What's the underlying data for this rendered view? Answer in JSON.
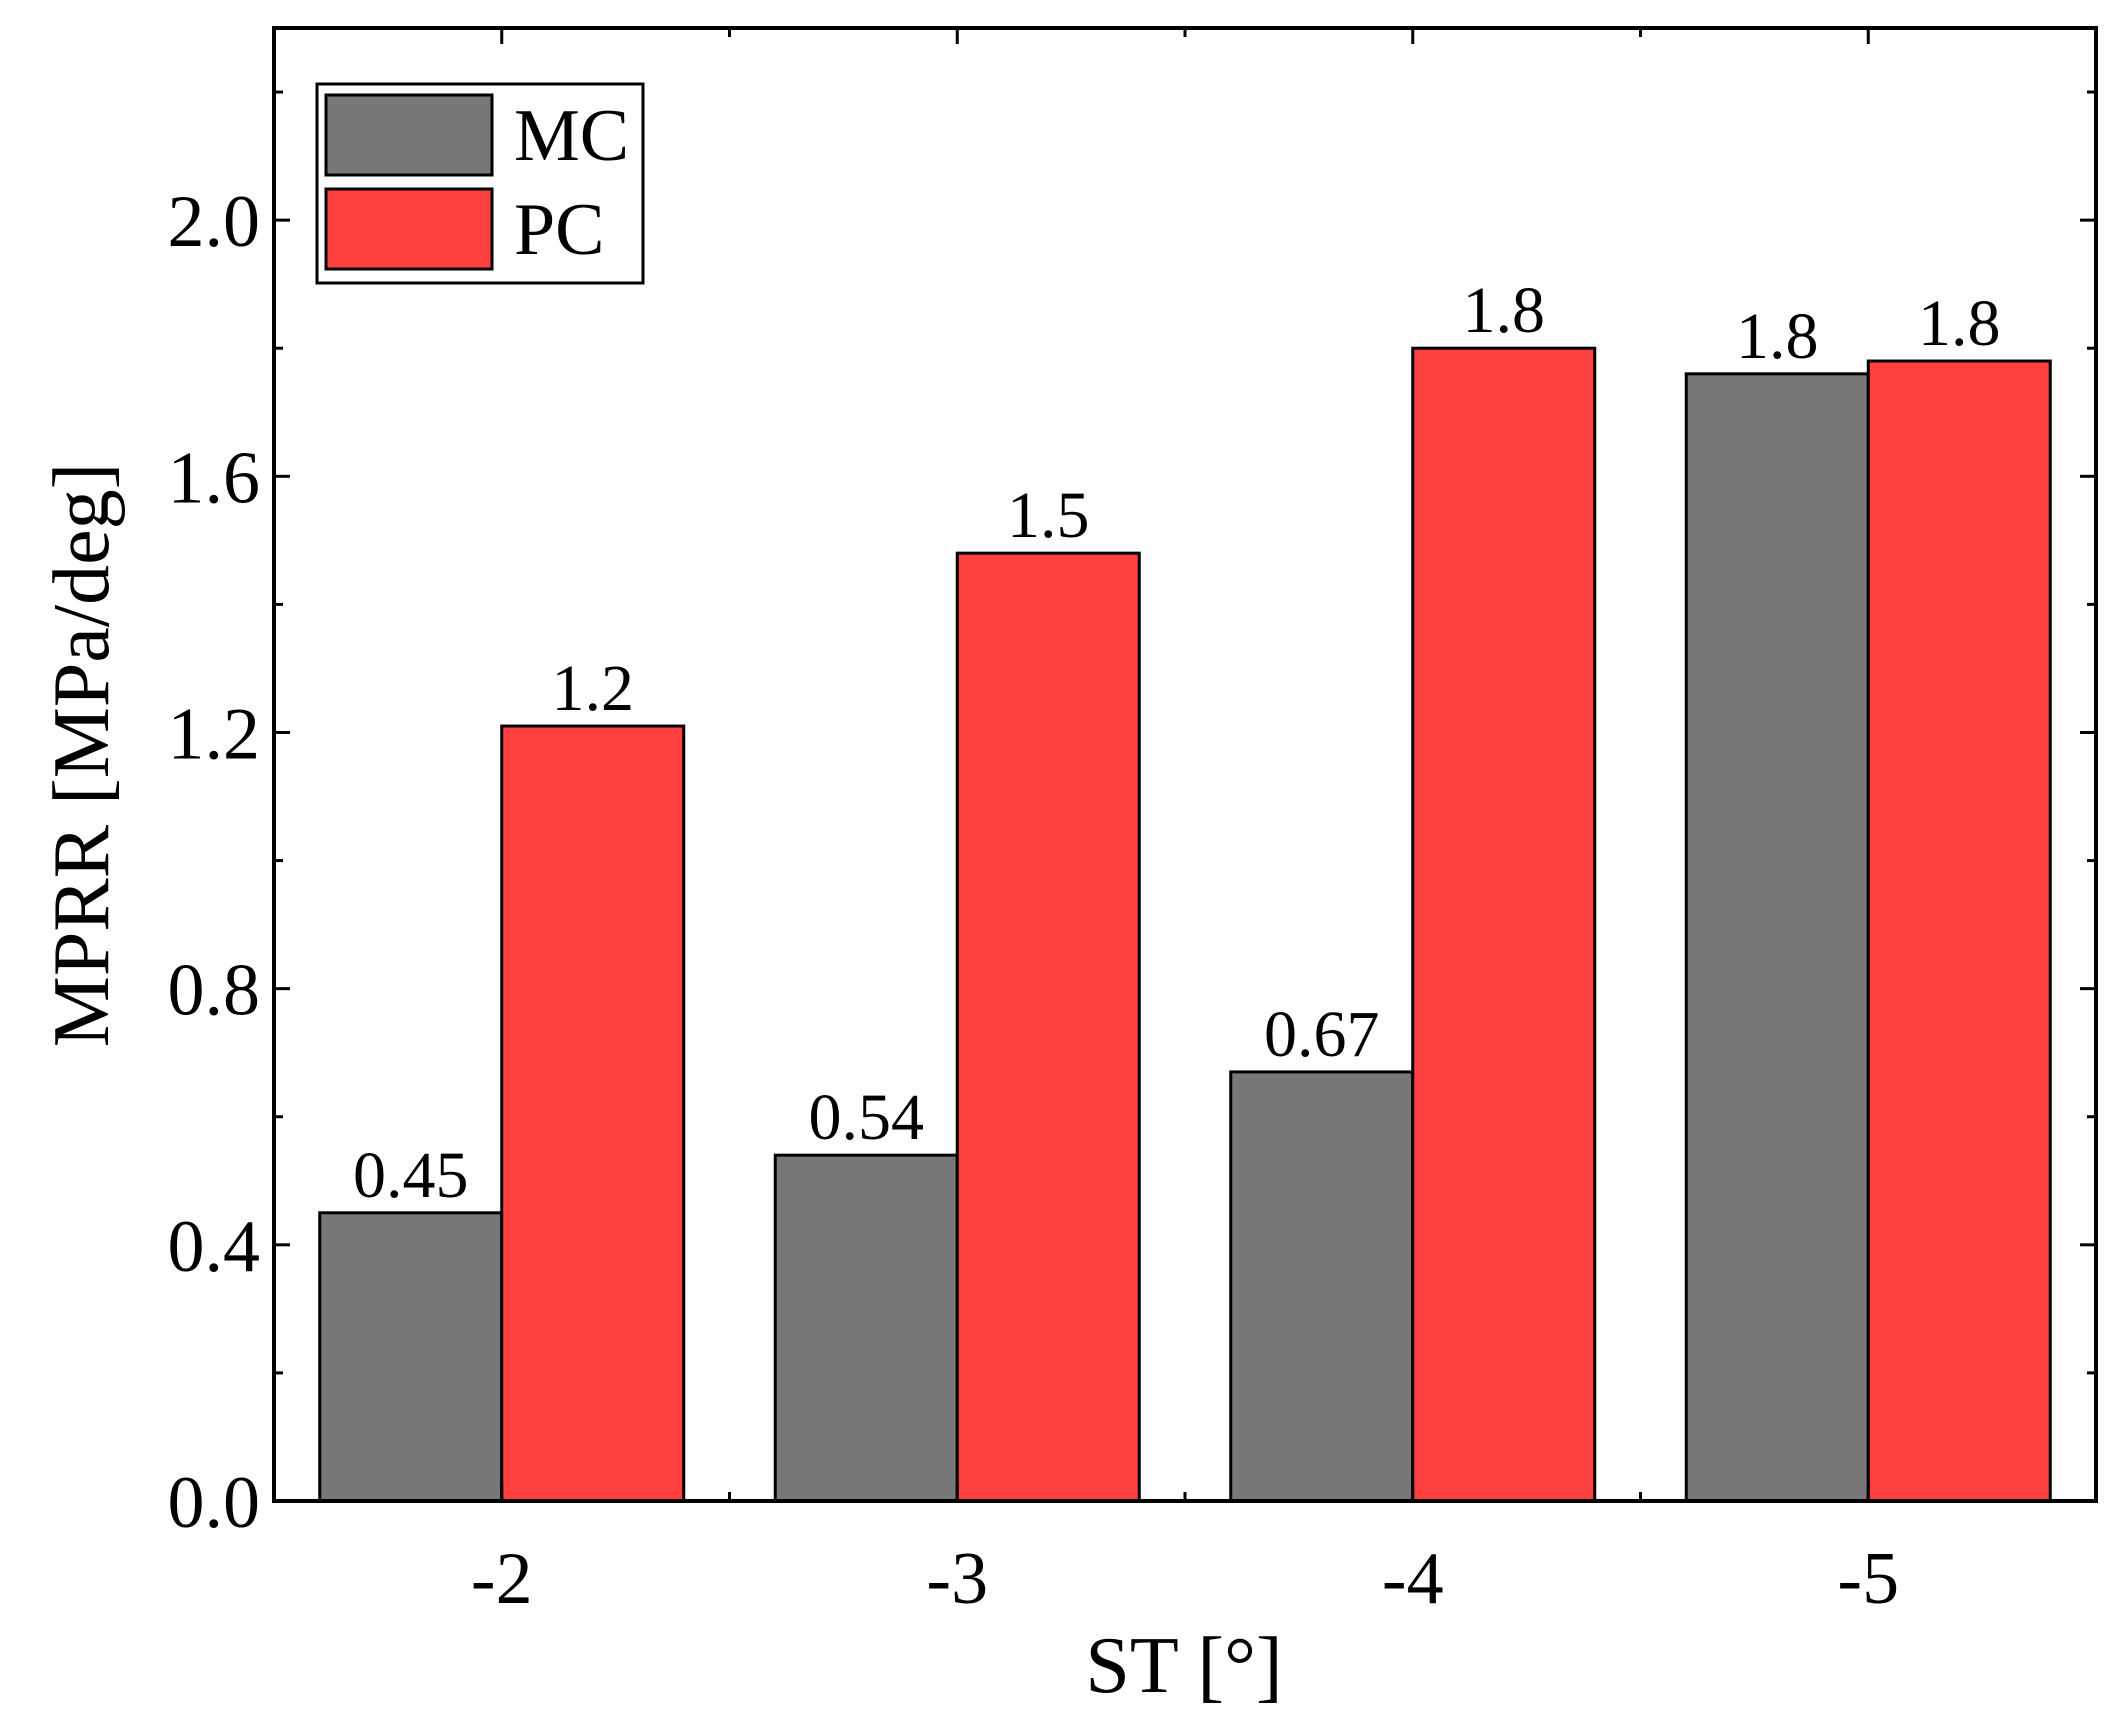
{
  "chart_data": {
    "type": "bar",
    "title": "",
    "xlabel": "ST [°]",
    "ylabel": "MPRR [MPa/deg]",
    "categories": [
      "-2",
      "-3",
      "-4",
      "-5"
    ],
    "ylim": [
      0,
      2.3
    ],
    "yticks": [
      0.0,
      0.4,
      0.8,
      1.2,
      1.6,
      2.0
    ],
    "ytick_labels": [
      "0.0",
      "0.4",
      "0.8",
      "1.2",
      "1.6",
      "2.0"
    ],
    "grid": false,
    "legend_position": "top-left",
    "series": [
      {
        "name": "MC",
        "color": "#787878",
        "values": [
          0.45,
          0.54,
          0.67,
          1.76
        ],
        "labels": [
          "0.45",
          "0.54",
          "0.67",
          "1.8"
        ]
      },
      {
        "name": "PC",
        "color": "#ff4040",
        "values": [
          1.21,
          1.48,
          1.8,
          1.78
        ],
        "labels": [
          "1.2",
          "1.5",
          "1.8",
          "1.8"
        ]
      }
    ]
  }
}
